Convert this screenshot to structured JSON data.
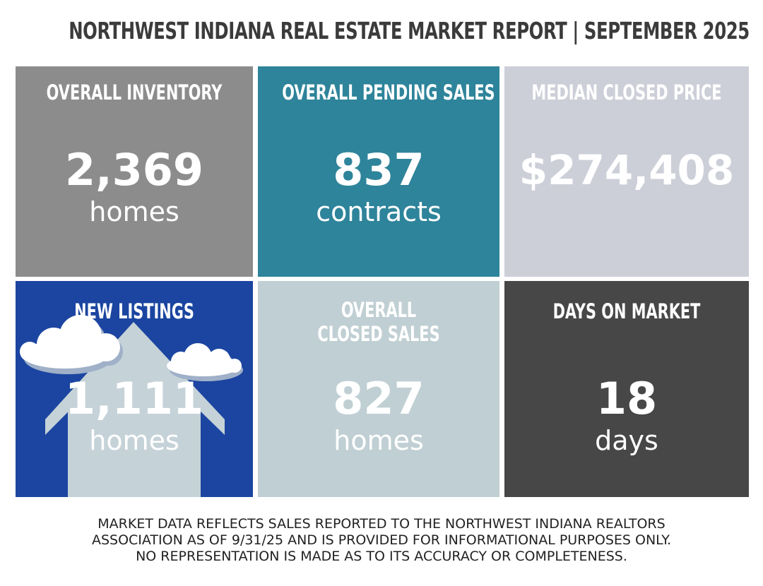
{
  "title": "NORTHWEST INDIANA REAL ESTATE MARKET REPORT | SEPTEMBER 2025",
  "colors": {
    "title": "#3b3b3b",
    "inventory_bg": "#8c8c8c",
    "pending_bg": "#2e849a",
    "median_bg": "#cdcfd8",
    "new_listings_bg": "#1b45a0",
    "closed_bg": "#c0cfd3",
    "dom_bg": "#474747",
    "illustration": "#c5d2d8"
  },
  "tiles": {
    "inventory": {
      "heading": "OVERALL INVENTORY",
      "value": "2,369",
      "unit": "homes"
    },
    "pending": {
      "heading": "OVERALL PENDING SALES",
      "value": "837",
      "unit": "contracts"
    },
    "median": {
      "heading": "MEDIAN CLOSED PRICE",
      "value": "$274,408"
    },
    "new_listings": {
      "heading": "NEW LISTINGS",
      "value": "1,111",
      "unit": "homes",
      "icon": "house-with-clouds-icon"
    },
    "closed": {
      "heading_line1": "OVERALL",
      "heading_line2": "CLOSED SALES",
      "value": "827",
      "unit": "homes"
    },
    "dom": {
      "heading": "DAYS ON MARKET",
      "value": "18",
      "unit": "days"
    }
  },
  "footer": {
    "line1": "MARKET DATA REFLECTS SALES REPORTED TO THE NORTHWEST INDIANA REALTORS",
    "line2": "ASSOCIATION AS OF 9/31/25 AND IS PROVIDED FOR INFORMATIONAL PURPOSES ONLY.",
    "line3": "NO REPRESENTATION IS MADE AS TO ITS ACCURACY OR COMPLETENESS."
  }
}
